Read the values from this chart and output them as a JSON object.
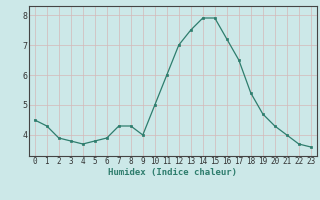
{
  "x": [
    0,
    1,
    2,
    3,
    4,
    5,
    6,
    7,
    8,
    9,
    10,
    11,
    12,
    13,
    14,
    15,
    16,
    17,
    18,
    19,
    20,
    21,
    22,
    23
  ],
  "y": [
    4.5,
    4.3,
    3.9,
    3.8,
    3.7,
    3.8,
    3.9,
    4.3,
    4.3,
    4.0,
    5.0,
    6.0,
    7.0,
    7.5,
    7.9,
    7.9,
    7.2,
    6.5,
    5.4,
    4.7,
    4.3,
    4.0,
    3.7,
    3.6
  ],
  "xlabel": "Humidex (Indice chaleur)",
  "ylim": [
    3.3,
    8.3
  ],
  "yticks": [
    4,
    5,
    6,
    7,
    8
  ],
  "xticks": [
    0,
    1,
    2,
    3,
    4,
    5,
    6,
    7,
    8,
    9,
    10,
    11,
    12,
    13,
    14,
    15,
    16,
    17,
    18,
    19,
    20,
    21,
    22,
    23
  ],
  "line_color": "#2e7d6d",
  "marker_color": "#2e7d6d",
  "bg_color": "#cce8e8",
  "grid_color": "#d4b8b8",
  "axis_color": "#444444",
  "tick_color": "#333333",
  "xlabel_color": "#2e7d6d",
  "tick_fontsize": 5.5,
  "xlabel_fontsize": 6.5
}
